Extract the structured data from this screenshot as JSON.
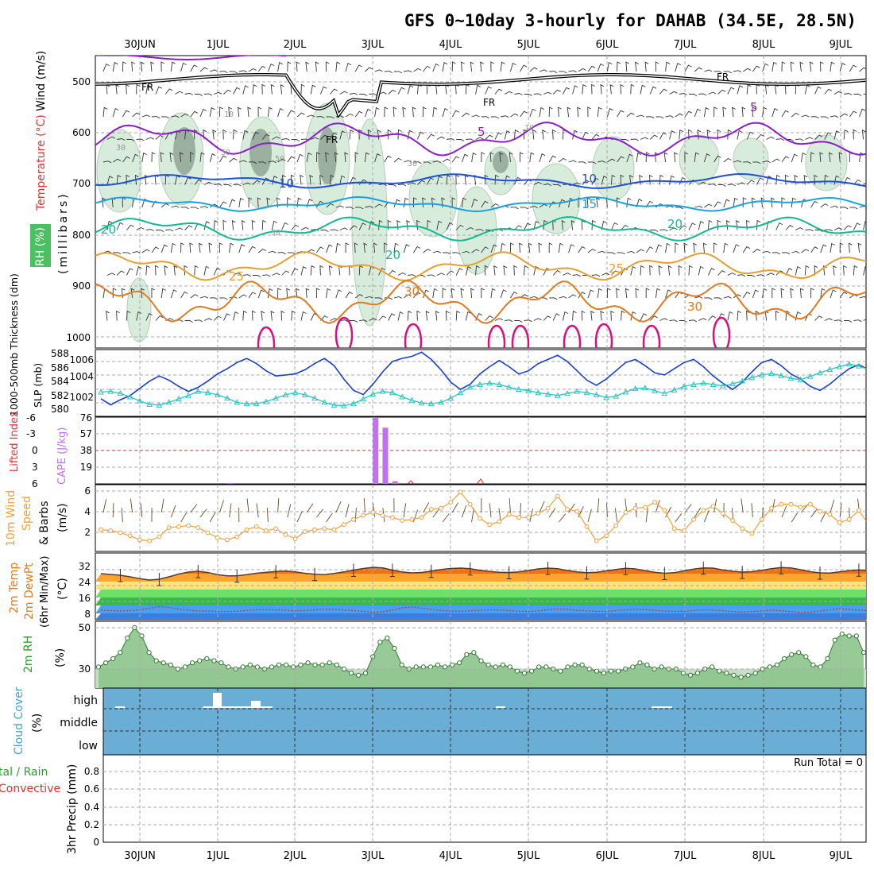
{
  "title": "GFS 0~10day 3-hourly for DAHAB (34.5E, 28.5N)",
  "days": [
    "30JUN",
    "1JUL",
    "2JUL",
    "3JUL",
    "4JUL",
    "5JUL",
    "6JUL",
    "7JUL",
    "8JUL",
    "9JUL"
  ],
  "colors": {
    "t5": "#8a1fc8",
    "t10": "#1d4fd8",
    "t15": "#18a0e0",
    "t20": "#14b890",
    "t25": "#e3a030",
    "t30": "#e07a22",
    "t35": "#d8107a",
    "rh": "#cfe6d4",
    "slp": "#1a3ecf",
    "thick": "#2cc4c4",
    "cape": "#c070f0",
    "wind10": "#f0a040",
    "cloud": "#6aaed6",
    "rh2m": "#8cc48c"
  },
  "panels": {
    "upper": {
      "ylabel_wind": "Wind (m/s)",
      "ylabel_temp": "Temperature (°C)",
      "ylabel_rh": "RH (%)",
      "ylabel_p": "(millibars)",
      "yticks": [
        "500",
        "600",
        "700",
        "800",
        "900",
        "1000"
      ],
      "contour_labels": [
        "5",
        "5",
        "10",
        "10",
        "15",
        "20",
        "20",
        "20",
        "25",
        "25",
        "30",
        "30",
        "FR",
        "FR",
        "FR",
        "FR",
        "10",
        "50",
        "50",
        "30",
        "30",
        "10",
        "30"
      ]
    },
    "slp": {
      "ylabel_left": "1000-500mb Thickness (dm)",
      "ylabel_right": "SLP (mb)",
      "yticks_left": [
        "580",
        "582",
        "584",
        "586",
        "588"
      ],
      "yticks_right": [
        "1002",
        "1004",
        "1006"
      ]
    },
    "cape": {
      "ylabel_left": "Lifted Index",
      "ylabel_right": "CAPE (J/kg)",
      "yticks_left": [
        "6",
        "3",
        "0",
        "-3",
        "-6"
      ],
      "yticks_right": [
        "19",
        "38",
        "57",
        "76"
      ]
    },
    "wind10": {
      "ylabel1": "10m Wind",
      "ylabel2": "Speed",
      "ylabel3": "& Barbs",
      "ylabel4": "(m/s)",
      "yticks": [
        "2",
        "4",
        "6"
      ]
    },
    "t2m": {
      "ylabel1": "2m Temp",
      "ylabel2": "2m DewPt",
      "ylabel3": "(6hr Min/Max)",
      "ylabel4": "(°C)",
      "yticks": [
        "8",
        "16",
        "24",
        "32"
      ]
    },
    "rh2m": {
      "ylabel1": "2m RH",
      "ylabel2": "(%)",
      "yticks": [
        "30",
        "50"
      ]
    },
    "cloud": {
      "ylabel1": "Cloud Cover",
      "ylabel2": "(%)",
      "yticks": [
        "high",
        "middle",
        "low"
      ]
    },
    "precip": {
      "ylabel1": "tal / Rain",
      "ylabel2": "Convective",
      "ylabel3": "3hr Precip (mm)",
      "yticks": [
        "0",
        "0.2",
        "0.4",
        "0.6",
        "0.8"
      ],
      "run_total": "Run Total = 0"
    }
  },
  "chart_data": [
    {
      "type": "line",
      "title": "Thickness and SLP",
      "x_unit": "3-hourly steps from 29 Jun 12Z",
      "series": [
        {
          "name": "SLP (mb)",
          "values": [
            1002.4,
            1001.8,
            1002.3,
            1002.7,
            1003.4,
            1004.1,
            1004.6,
            1004.2,
            1003.6,
            1003.1,
            1003.5,
            1004.1,
            1004.8,
            1005.3,
            1005.9,
            1006.3,
            1005.8,
            1005.1,
            1004.6,
            1004.7,
            1004.8,
            1005.2,
            1005.8,
            1006.3,
            1005.6,
            1004.3,
            1003.2,
            1002.8,
            1003.8,
            1005.0,
            1006.0,
            1006.3,
            1006.5,
            1006.9,
            1006.2,
            1005.2,
            1004.0,
            1003.3,
            1003.8,
            1004.8,
            1005.5,
            1006.1,
            1005.5,
            1004.8,
            1005.1,
            1005.8,
            1006.2,
            1006.6,
            1006.0,
            1005.1,
            1004.2,
            1003.7,
            1004.3,
            1005.1,
            1005.9,
            1006.2,
            1005.6,
            1004.9,
            1004.7,
            1005.3,
            1005.9,
            1006.2,
            1005.5,
            1004.6,
            1003.9,
            1003.3,
            1004.0,
            1005.0,
            1005.9,
            1006.2,
            1005.6,
            1004.8,
            1004.3,
            1003.6,
            1003.2,
            1003.8,
            1004.6,
            1005.3,
            1005.7,
            1005.2,
            1004.4,
            1003.6,
            1003.2,
            1003.8,
            1004.6,
            1005.1,
            1004.6,
            1004.0,
            1003.5,
            1003.3,
            1003.8,
            1004.6,
            1005.0,
            1004.4,
            1003.8,
            1003.1,
            1002.6,
            1002.1,
            1003.4,
            1004.4,
            1004.7
          ]
        },
        {
          "name": "1000-500mb Thickness (dm)",
          "values": [
            582.5,
            582.6,
            582.3,
            581.8,
            581.2,
            580.7,
            580.6,
            581.0,
            581.5,
            582.0,
            582.6,
            582.4,
            582.1,
            581.6,
            581.0,
            580.8,
            580.8,
            581.1,
            581.6,
            582.1,
            582.4,
            582.1,
            581.6,
            581.0,
            580.6,
            580.5,
            580.8,
            581.5,
            582.2,
            582.6,
            582.4,
            581.8,
            581.3,
            580.9,
            580.8,
            581.0,
            581.6,
            582.4,
            583.2,
            583.6,
            583.8,
            583.6,
            583.2,
            582.9,
            582.7,
            582.4,
            582.2,
            582.0,
            582.3,
            582.6,
            582.4,
            582.1,
            581.7,
            581.9,
            582.5,
            583.0,
            583.1,
            582.7,
            582.3,
            582.8,
            583.3,
            583.6,
            583.8,
            583.6,
            583.4,
            583.7,
            584.1,
            584.6,
            585.0,
            585.2,
            584.9,
            584.5,
            584.3,
            584.8,
            585.3,
            585.8,
            586.2,
            586.6,
            586.3,
            585.8,
            585.2,
            584.8,
            585.1,
            585.5,
            585.9,
            586.0,
            585.8,
            585.2,
            584.6,
            583.8,
            583.2,
            583.4,
            583.8,
            584.0,
            583.6,
            583.2,
            582.9,
            582.5,
            583.0,
            583.2,
            582.8
          ]
        }
      ]
    },
    {
      "type": "bar",
      "title": "CAPE",
      "x_unit": "3-hourly step index",
      "series": [
        {
          "name": "CAPE (J/kg)",
          "points": [
            [
              10,
              1
            ],
            [
              25,
              75
            ],
            [
              26,
              64
            ],
            [
              27,
              3
            ]
          ]
        }
      ],
      "ylim": [
        0,
        76
      ]
    },
    {
      "type": "line",
      "title": "10m Wind Speed",
      "x_unit": "3-hourly steps",
      "series": [
        {
          "name": "Speed (m/s)",
          "values": [
            2.3,
            2.2,
            2.0,
            1.7,
            1.3,
            1.2,
            1.6,
            2.5,
            2.6,
            2.7,
            2.5,
            2.0,
            1.5,
            1.3,
            1.6,
            2.3,
            2.6,
            2.2,
            2.4,
            1.8,
            1.4,
            2.1,
            2.3,
            2.4,
            2.3,
            2.8,
            3.3,
            3.7,
            4.0,
            3.7,
            3.5,
            3.2,
            3.3,
            3.5,
            4.3,
            4.4,
            5.0,
            6.0,
            4.8,
            3.4,
            2.8,
            3.1,
            3.8,
            3.5,
            3.5,
            3.9,
            4.4,
            5.6,
            4.3,
            4.1,
            2.6,
            1.2,
            1.7,
            2.7,
            4.0,
            4.4,
            4.5,
            5.0,
            4.2,
            2.4,
            2.2,
            3.3,
            4.2,
            4.6,
            3.9,
            3.2,
            2.4,
            1.9,
            3.3,
            4.4,
            4.8,
            4.8,
            4.5,
            4.8,
            4.1,
            3.8,
            3.0,
            3.3,
            4.2,
            2.8,
            2.1,
            2.5,
            3.1,
            2.4,
            1.5,
            1.4,
            1.5,
            1.8,
            2.9,
            3.6,
            2.4,
            2.0,
            1.8,
            2.2,
            1.5,
            1.7,
            0.9,
            0.8,
            1.1,
            1.2,
            1.8
          ]
        }
      ],
      "ylim": [
        0,
        6.5
      ]
    },
    {
      "type": "area",
      "title": "2m Temperature / DewPoint",
      "series": [
        {
          "name": "2m Temp (°C)",
          "values": [
            30,
            29.6,
            29.2,
            28.4,
            27.5,
            26.8,
            27.2,
            28.4,
            29.8,
            30.8,
            31.2,
            30.6,
            29.5,
            28.9,
            28.9,
            29.5,
            30.2,
            30.7,
            31.1,
            31.3,
            30.9,
            30.2,
            29.7,
            29.5,
            30.1,
            30.9,
            31.8,
            32.6,
            33.2,
            32.9,
            31.8,
            30.9,
            30.4,
            30.6,
            31.3,
            32.1,
            32.6,
            32.8,
            32.5,
            31.7,
            31.1,
            30.7,
            30.6,
            30.9,
            31.6,
            32.4,
            32.8,
            32.5,
            31.6,
            30.9,
            30.5,
            30.7,
            31.4,
            32.1,
            32.7,
            32.4,
            31.5,
            30.7,
            30.2,
            30.5,
            31.4,
            32.3,
            32.9,
            32.8,
            31.9,
            31.2,
            30.8,
            31.0,
            31.7,
            32.5,
            33.1,
            32.9,
            32.0,
            31.0,
            30.4,
            30.3,
            30.9,
            31.5,
            31.9,
            31.6,
            30.8,
            30.2,
            29.7,
            29.9,
            30.4,
            31.0,
            31.3,
            30.8,
            30.1,
            29.4,
            28.8,
            28.2,
            27.6,
            27.3,
            27.0,
            26.8,
            28.0,
            30.5
          ]
        },
        {
          "name": "2m DewPt (°C)",
          "values": [
            11.6,
            11.4,
            11.2,
            11.4,
            11.8,
            12.6,
            13.4,
            13.0,
            12.2,
            11.6,
            11.3,
            11.2,
            11.0,
            10.9,
            11.1,
            11.5,
            11.8,
            11.9,
            11.8,
            11.6,
            11.3,
            11.5,
            11.8,
            12.1,
            12.0,
            11.7,
            11.4,
            11.0,
            10.6,
            10.8,
            11.6,
            12.8,
            13.2,
            12.6,
            12.0,
            11.5,
            11.2,
            11.1,
            11.3,
            11.6,
            11.8,
            11.7,
            11.4,
            11.1,
            11.0,
            11.3,
            11.8,
            12.2,
            12.0,
            11.6,
            11.3,
            11.1,
            11.0,
            11.4,
            11.8,
            12.0,
            11.9,
            11.5,
            11.2,
            11.0,
            11.1,
            11.5,
            11.8,
            11.7,
            11.3,
            10.9,
            10.7,
            10.9,
            11.3,
            11.6,
            11.4,
            10.9,
            10.5,
            10.6,
            11.2,
            11.9,
            12.4,
            12.0,
            11.6,
            11.4,
            11.3,
            11.5,
            11.9,
            12.3,
            12.6,
            12.8,
            12.4,
            11.9,
            11.6,
            11.8,
            12.4,
            13.2,
            13.6,
            13.4,
            13.0,
            12.6,
            12.0,
            11.8
          ]
        }
      ],
      "ylim": [
        6,
        36
      ]
    },
    {
      "type": "area",
      "title": "2m RH",
      "series": [
        {
          "name": "2m RH (%)",
          "values": [
            31,
            33,
            35,
            38,
            45,
            50,
            46,
            38,
            34,
            33,
            32,
            30,
            31,
            33,
            34,
            35,
            34,
            33,
            31,
            30,
            31,
            32,
            31,
            30,
            31,
            32,
            32,
            31,
            32,
            33,
            32,
            32,
            33,
            32,
            30,
            28,
            27,
            28,
            36,
            43,
            45,
            40,
            32,
            30,
            31,
            31,
            31,
            32,
            31,
            32,
            33,
            37,
            38,
            34,
            32,
            31,
            32,
            31,
            29,
            28,
            29,
            31,
            31,
            30,
            29,
            31,
            32,
            32,
            30,
            29,
            28,
            29,
            29,
            30,
            31,
            33,
            32,
            30,
            31,
            30,
            30,
            28,
            27,
            28,
            30,
            31,
            29,
            28,
            27,
            26,
            27,
            28,
            30,
            31,
            32,
            35,
            37,
            38,
            36,
            32,
            31,
            35,
            44,
            47,
            46,
            46,
            38
          ]
        }
      ],
      "ylim": [
        20,
        52
      ]
    }
  ]
}
